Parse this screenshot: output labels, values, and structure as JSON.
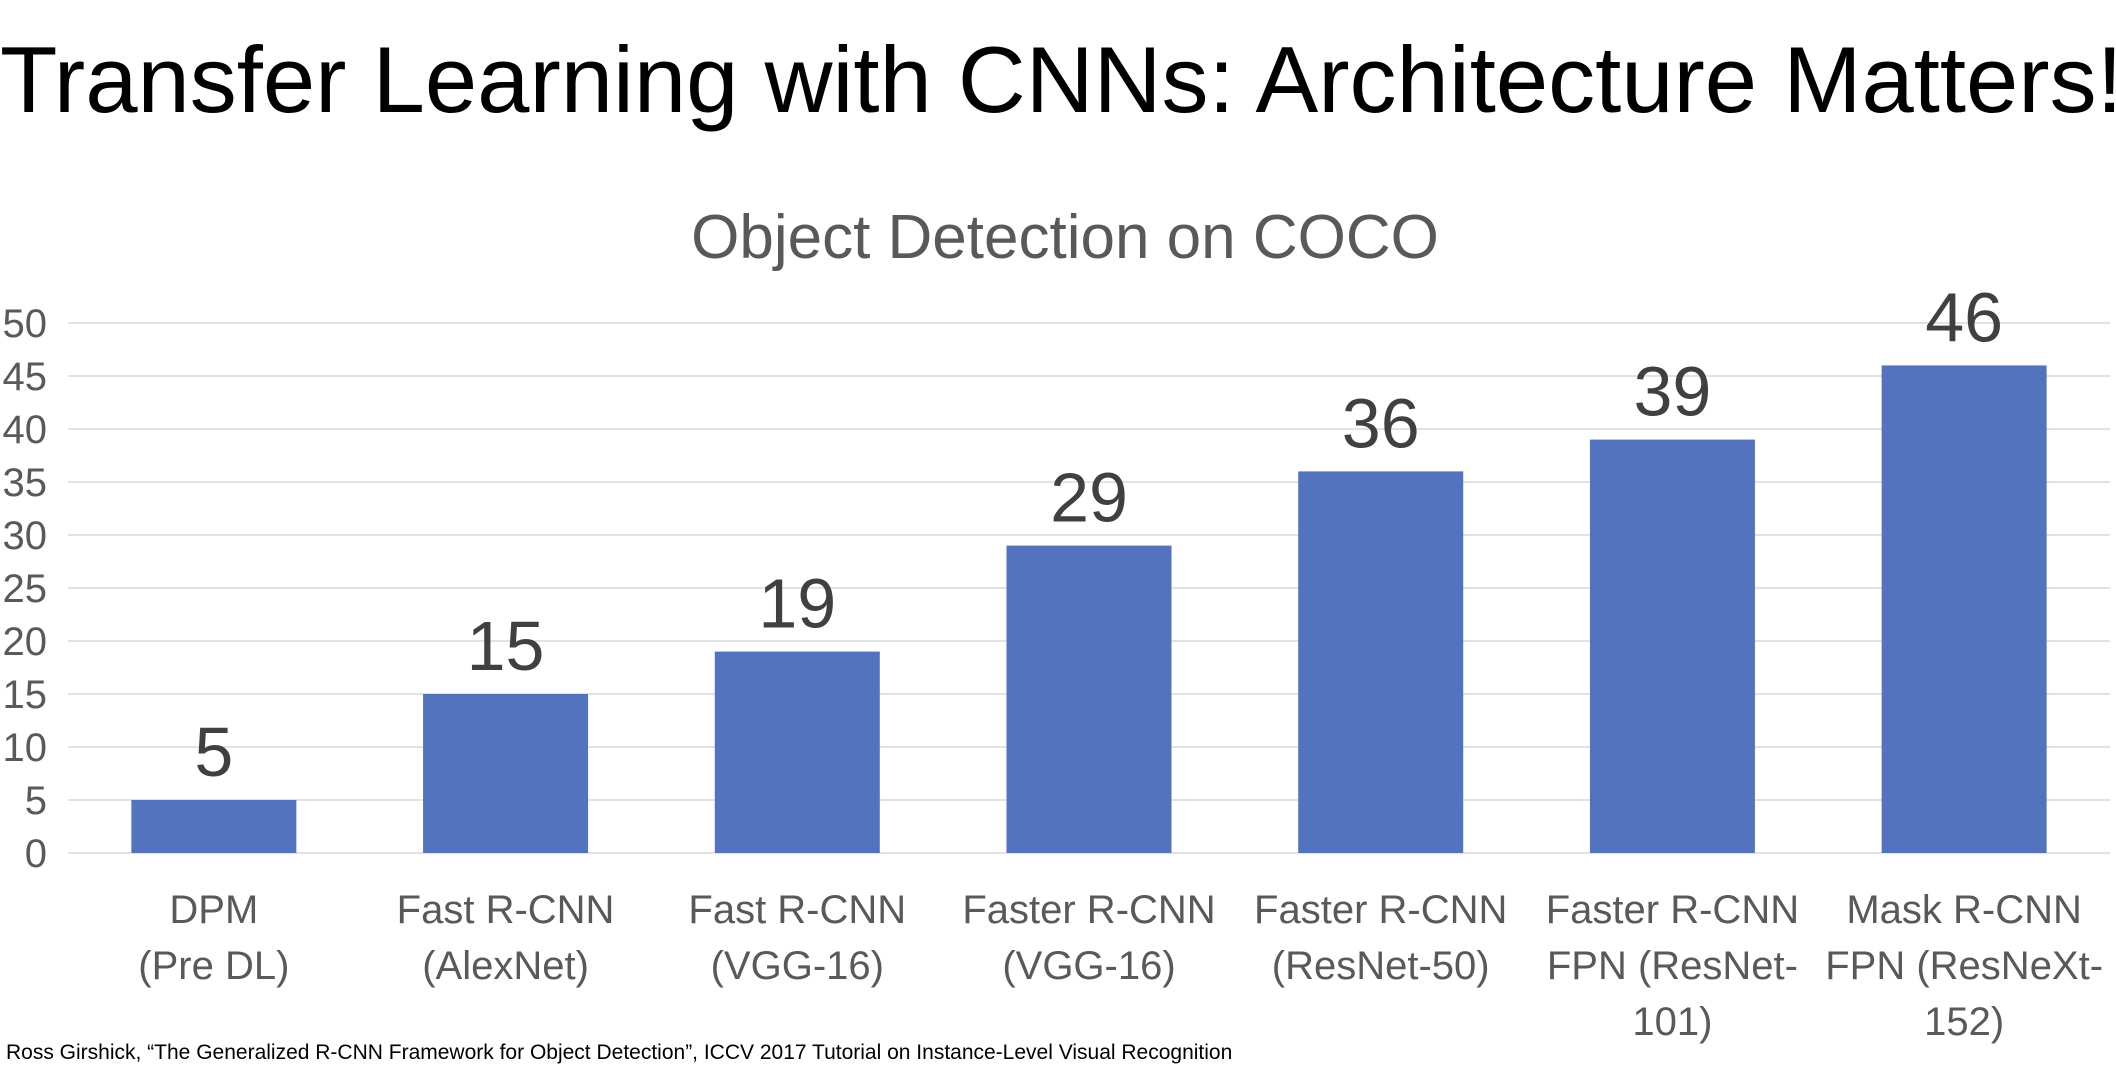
{
  "slide": {
    "title": "Transfer Learning with CNNs: Architecture Matters!",
    "footer": "Ross Girshick, “The Generalized R-CNN Framework for Object Detection”, ICCV 2017 Tutorial on Instance-Level Visual Recognition"
  },
  "chart_data": {
    "type": "bar",
    "title": "Object Detection on COCO",
    "xlabel": "",
    "ylabel": "",
    "ylim": [
      0,
      50
    ],
    "yticks": [
      0,
      5,
      10,
      15,
      20,
      25,
      30,
      35,
      40,
      45,
      50
    ],
    "grid": true,
    "legend": "none",
    "bar_color": "#5373bf",
    "categories": [
      [
        "DPM",
        "(Pre DL)"
      ],
      [
        "Fast R-CNN",
        "(AlexNet)"
      ],
      [
        "Fast R-CNN",
        "(VGG-16)"
      ],
      [
        "Faster R-CNN",
        "(VGG-16)"
      ],
      [
        "Faster R-CNN",
        "(ResNet-50)"
      ],
      [
        "Faster R-CNN",
        "FPN (ResNet-",
        "101)"
      ],
      [
        "Mask R-CNN",
        "FPN (ResNeXt-",
        "152)"
      ]
    ],
    "values": [
      5,
      15,
      19,
      29,
      36,
      39,
      46
    ],
    "data_labels": [
      "5",
      "15",
      "19",
      "29",
      "36",
      "39",
      "46"
    ]
  }
}
